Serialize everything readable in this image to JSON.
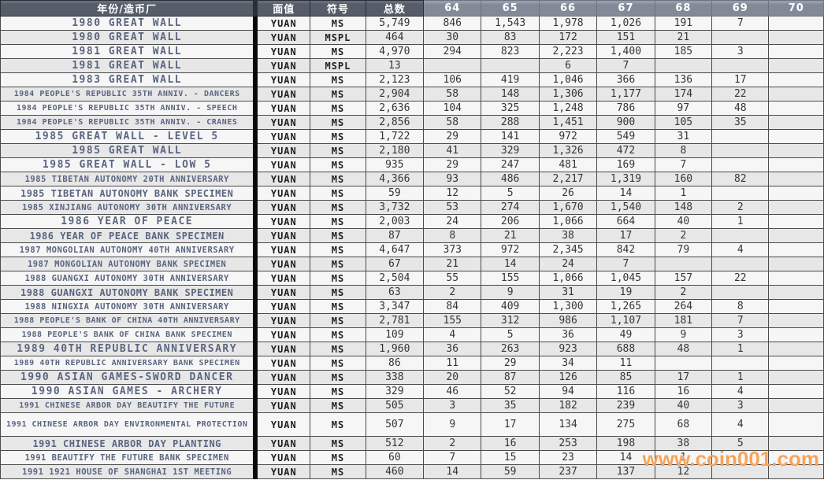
{
  "table": {
    "columns": [
      {
        "key": "name",
        "label": "年份/造币厂"
      },
      {
        "key": "denom",
        "label": "面值"
      },
      {
        "key": "desig",
        "label": "符号"
      },
      {
        "key": "total",
        "label": "总数"
      },
      {
        "key": "g64",
        "label": "64"
      },
      {
        "key": "g65",
        "label": "65"
      },
      {
        "key": "g66",
        "label": "66"
      },
      {
        "key": "g67",
        "label": "67"
      },
      {
        "key": "g68",
        "label": "68"
      },
      {
        "key": "g69",
        "label": "69"
      },
      {
        "key": "g70",
        "label": "70"
      }
    ],
    "rows": [
      {
        "name": "1980 GREAT WALL",
        "denom": "YUAN",
        "desig": "MS",
        "total": "5,749",
        "g64": "846",
        "g65": "1,543",
        "g66": "1,978",
        "g67": "1,026",
        "g68": "191",
        "g69": "7",
        "g70": ""
      },
      {
        "name": "1980 GREAT WALL",
        "denom": "YUAN",
        "desig": "MSPL",
        "total": "464",
        "g64": "30",
        "g65": "83",
        "g66": "172",
        "g67": "151",
        "g68": "21",
        "g69": "",
        "g70": ""
      },
      {
        "name": "1981 GREAT WALL",
        "denom": "YUAN",
        "desig": "MS",
        "total": "4,970",
        "g64": "294",
        "g65": "823",
        "g66": "2,223",
        "g67": "1,400",
        "g68": "185",
        "g69": "3",
        "g70": ""
      },
      {
        "name": "1981 GREAT WALL",
        "denom": "YUAN",
        "desig": "MSPL",
        "total": "13",
        "g64": "",
        "g65": "",
        "g66": "6",
        "g67": "7",
        "g68": "",
        "g69": "",
        "g70": ""
      },
      {
        "name": "1983 GREAT WALL",
        "denom": "YUAN",
        "desig": "MS",
        "total": "2,123",
        "g64": "106",
        "g65": "419",
        "g66": "1,046",
        "g67": "366",
        "g68": "136",
        "g69": "17",
        "g70": ""
      },
      {
        "name": "1984 PEOPLE'S REPUBLIC 35TH ANNIV. - DANCERS",
        "denom": "YUAN",
        "desig": "MS",
        "total": "2,904",
        "g64": "58",
        "g65": "148",
        "g66": "1,306",
        "g67": "1,177",
        "g68": "174",
        "g69": "22",
        "g70": ""
      },
      {
        "name": "1984 PEOPLE'S REPUBLIC 35TH ANNIV. - SPEECH",
        "denom": "YUAN",
        "desig": "MS",
        "total": "2,636",
        "g64": "104",
        "g65": "325",
        "g66": "1,248",
        "g67": "786",
        "g68": "97",
        "g69": "48",
        "g70": ""
      },
      {
        "name": "1984 PEOPLE'S REPUBLIC 35TH ANNIV. - CRANES",
        "denom": "YUAN",
        "desig": "MS",
        "total": "2,856",
        "g64": "58",
        "g65": "288",
        "g66": "1,451",
        "g67": "900",
        "g68": "105",
        "g69": "35",
        "g70": ""
      },
      {
        "name": "1985 GREAT WALL - LEVEL 5",
        "denom": "YUAN",
        "desig": "MS",
        "total": "1,722",
        "g64": "29",
        "g65": "141",
        "g66": "972",
        "g67": "549",
        "g68": "31",
        "g69": "",
        "g70": ""
      },
      {
        "name": "1985 GREAT WALL",
        "denom": "YUAN",
        "desig": "MS",
        "total": "2,180",
        "g64": "41",
        "g65": "329",
        "g66": "1,326",
        "g67": "472",
        "g68": "8",
        "g69": "",
        "g70": ""
      },
      {
        "name": "1985 GREAT WALL - LOW 5",
        "denom": "YUAN",
        "desig": "MS",
        "total": "935",
        "g64": "29",
        "g65": "247",
        "g66": "481",
        "g67": "169",
        "g68": "7",
        "g69": "",
        "g70": ""
      },
      {
        "name": "1985 TIBETAN AUTONOMY 20TH ANNIVERSARY",
        "denom": "YUAN",
        "desig": "MS",
        "total": "4,366",
        "g64": "93",
        "g65": "486",
        "g66": "2,217",
        "g67": "1,319",
        "g68": "160",
        "g69": "82",
        "g70": ""
      },
      {
        "name": "1985 TIBETAN AUTONOMY BANK SPECIMEN",
        "denom": "YUAN",
        "desig": "MS",
        "total": "59",
        "g64": "12",
        "g65": "5",
        "g66": "26",
        "g67": "14",
        "g68": "1",
        "g69": "",
        "g70": ""
      },
      {
        "name": "1985 XINJIANG AUTONOMY 30TH ANNIVERSARY",
        "denom": "YUAN",
        "desig": "MS",
        "total": "3,732",
        "g64": "53",
        "g65": "274",
        "g66": "1,670",
        "g67": "1,540",
        "g68": "148",
        "g69": "2",
        "g70": ""
      },
      {
        "name": "1986 YEAR OF PEACE",
        "denom": "YUAN",
        "desig": "MS",
        "total": "2,003",
        "g64": "24",
        "g65": "206",
        "g66": "1,066",
        "g67": "664",
        "g68": "40",
        "g69": "1",
        "g70": ""
      },
      {
        "name": "1986 YEAR OF PEACE BANK SPECIMEN",
        "denom": "YUAN",
        "desig": "MS",
        "total": "87",
        "g64": "8",
        "g65": "21",
        "g66": "38",
        "g67": "17",
        "g68": "2",
        "g69": "",
        "g70": ""
      },
      {
        "name": "1987 MONGOLIAN AUTONOMY 40TH ANNIVERSARY",
        "denom": "YUAN",
        "desig": "MS",
        "total": "4,647",
        "g64": "373",
        "g65": "972",
        "g66": "2,345",
        "g67": "842",
        "g68": "79",
        "g69": "4",
        "g70": ""
      },
      {
        "name": "1987 MONGOLIAN AUTONOMY BANK SPECIMEN",
        "denom": "YUAN",
        "desig": "MS",
        "total": "67",
        "g64": "21",
        "g65": "14",
        "g66": "24",
        "g67": "7",
        "g68": "",
        "g69": "",
        "g70": ""
      },
      {
        "name": "1988 GUANGXI AUTONOMY 30TH ANNIVERSARY",
        "denom": "YUAN",
        "desig": "MS",
        "total": "2,504",
        "g64": "55",
        "g65": "155",
        "g66": "1,066",
        "g67": "1,045",
        "g68": "157",
        "g69": "22",
        "g70": ""
      },
      {
        "name": "1988 GUANGXI AUTONOMY BANK SPECIMEN",
        "denom": "YUAN",
        "desig": "MS",
        "total": "63",
        "g64": "2",
        "g65": "9",
        "g66": "31",
        "g67": "19",
        "g68": "2",
        "g69": "",
        "g70": ""
      },
      {
        "name": "1988 NINGXIA AUTONOMY 30TH ANNIVERSARY",
        "denom": "YUAN",
        "desig": "MS",
        "total": "3,347",
        "g64": "84",
        "g65": "409",
        "g66": "1,300",
        "g67": "1,265",
        "g68": "264",
        "g69": "8",
        "g70": ""
      },
      {
        "name": "1988 PEOPLE'S BANK OF CHINA 40TH ANNIVERSARY",
        "denom": "YUAN",
        "desig": "MS",
        "total": "2,781",
        "g64": "155",
        "g65": "312",
        "g66": "986",
        "g67": "1,107",
        "g68": "181",
        "g69": "7",
        "g70": ""
      },
      {
        "name": "1988 PEOPLE'S BANK OF CHINA BANK SPECIMEN",
        "denom": "YUAN",
        "desig": "MS",
        "total": "109",
        "g64": "4",
        "g65": "5",
        "g66": "36",
        "g67": "49",
        "g68": "9",
        "g69": "3",
        "g70": ""
      },
      {
        "name": "1989 40TH REPUBLIC ANNIVERSARY",
        "denom": "YUAN",
        "desig": "MS",
        "total": "1,960",
        "g64": "36",
        "g65": "263",
        "g66": "923",
        "g67": "688",
        "g68": "48",
        "g69": "1",
        "g70": ""
      },
      {
        "name": "1989 40TH REPUBLIC ANNIVERSARY BANK SPECIMEN",
        "denom": "YUAN",
        "desig": "MS",
        "total": "86",
        "g64": "11",
        "g65": "29",
        "g66": "34",
        "g67": "11",
        "g68": "",
        "g69": "",
        "g70": ""
      },
      {
        "name": "1990 ASIAN GAMES-SWORD DANCER",
        "denom": "YUAN",
        "desig": "MS",
        "total": "338",
        "g64": "20",
        "g65": "87",
        "g66": "126",
        "g67": "85",
        "g68": "17",
        "g69": "1",
        "g70": ""
      },
      {
        "name": "1990 ASIAN GAMES - ARCHERY",
        "denom": "YUAN",
        "desig": "MS",
        "total": "329",
        "g64": "46",
        "g65": "52",
        "g66": "94",
        "g67": "116",
        "g68": "16",
        "g69": "4",
        "g70": ""
      },
      {
        "name": "1991 CHINESE ARBOR DAY BEAUTIFY THE FUTURE",
        "denom": "YUAN",
        "desig": "MS",
        "total": "505",
        "g64": "3",
        "g65": "35",
        "g66": "182",
        "g67": "239",
        "g68": "40",
        "g69": "3",
        "g70": ""
      },
      {
        "name": "1991 CHINESE ARBOR DAY ENVIRONMENTAL PROTECTION",
        "denom": "YUAN",
        "desig": "MS",
        "total": "507",
        "g64": "9",
        "g65": "17",
        "g66": "134",
        "g67": "275",
        "g68": "68",
        "g69": "4",
        "g70": ""
      },
      {
        "name": "1991 CHINESE ARBOR DAY PLANTING",
        "denom": "YUAN",
        "desig": "MS",
        "total": "512",
        "g64": "2",
        "g65": "16",
        "g66": "253",
        "g67": "198",
        "g68": "38",
        "g69": "5",
        "g70": ""
      },
      {
        "name": "1991 BEAUTIFY THE FUTURE BANK SPECIMEN",
        "denom": "YUAN",
        "desig": "MS",
        "total": "60",
        "g64": "7",
        "g65": "15",
        "g66": "23",
        "g67": "14",
        "g68": "1",
        "g69": "",
        "g70": ""
      },
      {
        "name": "1991 1921 HOUSE OF SHANGHAI 1ST MEETING",
        "denom": "YUAN",
        "desig": "MS",
        "total": "460",
        "g64": "14",
        "g65": "59",
        "g66": "237",
        "g67": "137",
        "g68": "12",
        "g69": "",
        "g70": ""
      }
    ]
  },
  "watermark": {
    "text": "www.coin001.com"
  },
  "colors": {
    "header_dark": "#565d69",
    "header_grade": "#828a98",
    "name_text": "#5a6580",
    "row_light": "#f6f6f6",
    "row_shaded": "#e7e7e7",
    "watermark_orange": "#f7a45a"
  }
}
